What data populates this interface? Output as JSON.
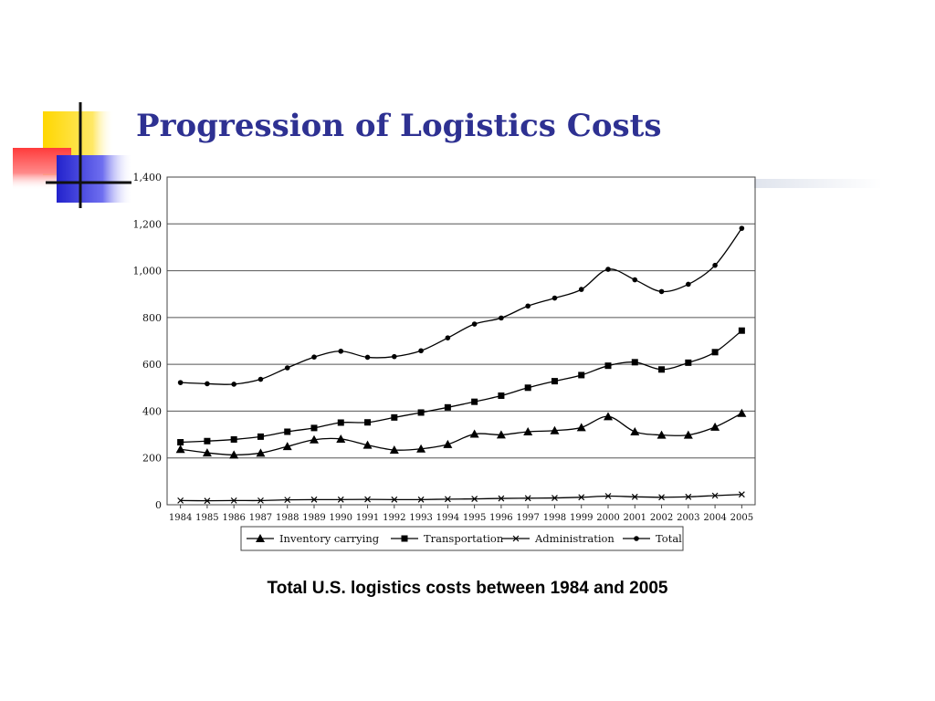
{
  "slide": {
    "title": "Progression of Logistics Costs",
    "caption": "Total U.S. logistics costs between 1984 and 2005"
  },
  "colors": {
    "title": "#2e3192",
    "deco_yellow": "#ffd700",
    "deco_red": "#ff4d4d",
    "deco_blue": "#2b2bd9"
  },
  "chart_data": {
    "type": "line",
    "title": "",
    "xlabel": "",
    "ylabel": "",
    "categories": [
      "1984",
      "1985",
      "1986",
      "1987",
      "1988",
      "1989",
      "1990",
      "1991",
      "1992",
      "1993",
      "1994",
      "1995",
      "1996",
      "1997",
      "1998",
      "1999",
      "2000",
      "2001",
      "2002",
      "2003",
      "2004",
      "2005"
    ],
    "ylim": [
      0,
      1400
    ],
    "yticks": [
      0,
      200,
      400,
      600,
      800,
      1000,
      1200,
      1400
    ],
    "ytick_labels": [
      "0",
      "200",
      "400",
      "600",
      "800",
      "1,000",
      "1,200",
      "1,400"
    ],
    "grid": "horizontal",
    "legend": "bottom",
    "series": [
      {
        "name": "Inventory carrying",
        "marker": "triangle",
        "values": [
          237,
          222,
          213,
          221,
          249,
          278,
          281,
          255,
          234,
          239,
          258,
          302,
          299,
          312,
          317,
          330,
          377,
          312,
          298,
          298,
          332,
          391
        ]
      },
      {
        "name": "Transportation",
        "marker": "square",
        "values": [
          267,
          272,
          279,
          291,
          312,
          328,
          351,
          352,
          373,
          394,
          416,
          440,
          466,
          500,
          528,
          554,
          594,
          609,
          578,
          607,
          652,
          744
        ]
      },
      {
        "name": "Administration",
        "marker": "x",
        "values": [
          18,
          17,
          18,
          18,
          21,
          22,
          22,
          23,
          22,
          22,
          24,
          25,
          27,
          28,
          29,
          32,
          37,
          34,
          32,
          34,
          39,
          44
        ]
      },
      {
        "name": "Total",
        "marker": "circle",
        "values": [
          522,
          517,
          515,
          536,
          585,
          631,
          656,
          630,
          633,
          658,
          713,
          772,
          798,
          849,
          883,
          920,
          1006,
          961,
          911,
          942,
          1023,
          1181
        ]
      }
    ]
  }
}
